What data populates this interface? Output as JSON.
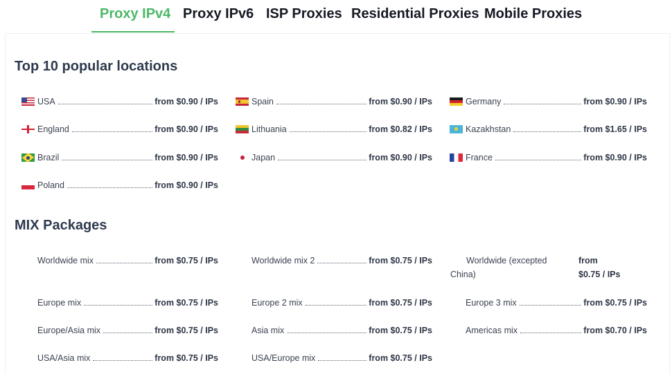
{
  "tabs": [
    {
      "label": "Proxy IPv4",
      "active": true
    },
    {
      "label": "Proxy IPv6",
      "active": false
    },
    {
      "label": "ISP Proxies",
      "active": false
    },
    {
      "label": "Residential Proxies",
      "active": false
    },
    {
      "label": "Mobile Proxies",
      "active": false
    }
  ],
  "accent_color": "#4cb866",
  "popular": {
    "title": "Top 10 popular locations",
    "items": [
      {
        "name": "USA",
        "price": "from $0.90 / IPs",
        "flag": "us-flag-icon"
      },
      {
        "name": "Spain",
        "price": "from $0.90 / IPs",
        "flag": "spain-flag-icon"
      },
      {
        "name": "Germany",
        "price": "from $0.90 / IPs",
        "flag": "germany-flag-icon"
      },
      {
        "name": "England",
        "price": "from $0.90 / IPs",
        "flag": "england-flag-icon"
      },
      {
        "name": "Lithuania",
        "price": "from $0.82 / IPs",
        "flag": "lithuania-flag-icon"
      },
      {
        "name": "Kazakhstan",
        "price": "from $1.65 / IPs",
        "flag": "kazakhstan-flag-icon"
      },
      {
        "name": "Brazil",
        "price": "from $0.90 / IPs",
        "flag": "brazil-flag-icon"
      },
      {
        "name": "Japan",
        "price": "from $0.90 / IPs",
        "flag": "japan-flag-icon"
      },
      {
        "name": "France",
        "price": "from $0.90 / IPs",
        "flag": "france-flag-icon"
      },
      {
        "name": "Poland",
        "price": "from $0.90 / IPs",
        "flag": "poland-flag-icon"
      }
    ]
  },
  "mix": {
    "title": "MIX Packages",
    "items": [
      {
        "name": "Worldwide mix",
        "price": "from $0.75 / IPs"
      },
      {
        "name": "Worldwide mix 2",
        "price": "from $0.75 / IPs"
      },
      {
        "name_line1": "Worldwide (excepted",
        "name_line2": "China)",
        "price_line1": "from",
        "price_line2": "$0.75 / IPs"
      },
      {
        "name": "Europe mix",
        "price": "from $0.75 / IPs"
      },
      {
        "name": "Europe 2 mix",
        "price": "from $0.75 / IPs"
      },
      {
        "name": "Europe 3 mix",
        "price": "from $0.75 / IPs"
      },
      {
        "name": "Europe/Asia mix",
        "price": "from $0.75 / IPs"
      },
      {
        "name": "Asia mix",
        "price": "from $0.75 / IPs"
      },
      {
        "name": "Americas mix",
        "price": "from $0.70 / IPs"
      },
      {
        "name": "USA/Asia mix",
        "price": "from $0.75 / IPs"
      },
      {
        "name": "USA/Europe mix",
        "price": "from $0.75 / IPs"
      }
    ]
  }
}
